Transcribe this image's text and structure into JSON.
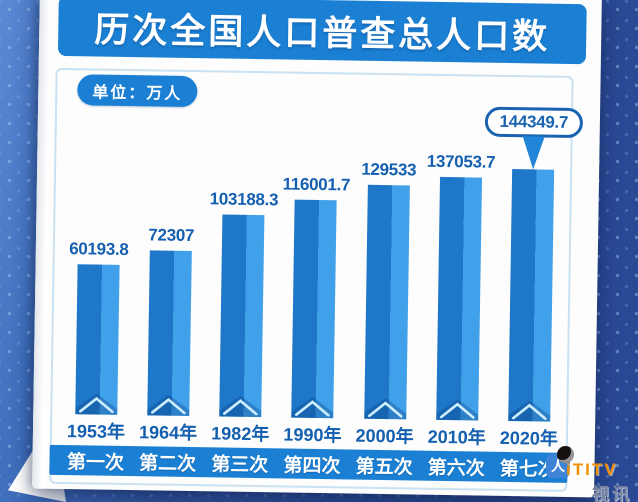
{
  "header": {
    "title": "历次全国人口普查总人口数"
  },
  "unit_badge": {
    "label": "单位：万人"
  },
  "chart_data": {
    "type": "bar",
    "title": "历次全国人口普查总人口数",
    "unit": "万人",
    "categories": [
      "1953年",
      "1964年",
      "1982年",
      "1990年",
      "2000年",
      "2010年",
      "2020年"
    ],
    "census_labels": [
      "第一次",
      "第二次",
      "第三次",
      "第四次",
      "第五次",
      "第六次",
      "第七次"
    ],
    "values": [
      60193.8,
      72307,
      103188.3,
      116001.7,
      129533,
      137053.7,
      144349.7
    ],
    "value_labels": [
      "60193.8",
      "72307",
      "103188.3",
      "116001.7",
      "129533",
      "137053.7",
      "144349.7"
    ],
    "highlight_index": 6,
    "highlight_callout": "144349.7",
    "legend": "none",
    "grid": false,
    "axis": "category-only"
  },
  "colors": {
    "azure": "#1b80d3",
    "bar_dark": "#1f77c9",
    "bar_light": "#41a0ea",
    "label_blue": "#155fb0",
    "callout_border": "#1a63b0",
    "pointer_blue": "#2285d8",
    "chevron_stroke": "#cfeeff",
    "wm_orange": "#f18f00"
  },
  "watermark": {
    "brand": "iTITV",
    "sub_label": "视讯",
    "person_glyph": "人"
  }
}
